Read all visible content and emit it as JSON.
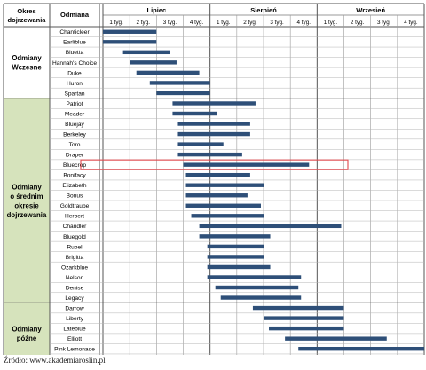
{
  "chart_data": {
    "type": "gantt",
    "headers": {
      "period": "Okres dojrzewania",
      "variety": "Odmiana"
    },
    "months": [
      "Lipiec",
      "Sierpień",
      "Wrzesień"
    ],
    "weeks": [
      "1 tyg.",
      "2 tyg.",
      "3 tyg.",
      "4 tyg.",
      "1 tyg.",
      "2 tyg.",
      "3 tyg.",
      "4 tyg.",
      "1 tyg.",
      "2 tyg.",
      "3 tyg.",
      "4 tyg."
    ],
    "groups": [
      {
        "label": "Odmiany Wczesne",
        "label_lines": [
          "Odmiany",
          "Wczesne"
        ],
        "shaded": false,
        "rows": 7
      },
      {
        "label": "Odmiany o średnim okresie dojrzewania",
        "label_lines": [
          "Odmiany",
          "o średnim",
          "okresie",
          "dojrzewania"
        ],
        "shaded": true,
        "rows": 20
      },
      {
        "label": "Odmiany późne",
        "label_lines": [
          "Odmiany",
          "późne"
        ],
        "shaded": true,
        "rows": 6
      }
    ],
    "x_unit": "weeks from start of July",
    "rows": [
      {
        "name": "Chanticleer",
        "start": 0.0,
        "end": 2.0
      },
      {
        "name": "Earliblue",
        "start": 0.0,
        "end": 2.0
      },
      {
        "name": "Bluetta",
        "start": 0.75,
        "end": 2.5
      },
      {
        "name": "Hannah's Choice",
        "start": 1.0,
        "end": 2.75
      },
      {
        "name": "Duke",
        "start": 1.25,
        "end": 3.6
      },
      {
        "name": "Huron",
        "start": 1.75,
        "end": 4.0
      },
      {
        "name": "Spartan",
        "start": 2.0,
        "end": 4.0
      },
      {
        "name": "Patriot",
        "start": 2.6,
        "end": 5.7
      },
      {
        "name": "Meader",
        "start": 2.6,
        "end": 4.25
      },
      {
        "name": "Bluejay",
        "start": 2.8,
        "end": 5.5
      },
      {
        "name": "Berkeley",
        "start": 2.8,
        "end": 5.5
      },
      {
        "name": "Toro",
        "start": 2.8,
        "end": 4.5
      },
      {
        "name": "Draper",
        "start": 2.8,
        "end": 5.2
      },
      {
        "name": "Bluecrop",
        "start": 3.0,
        "end": 7.7,
        "highlighted": true
      },
      {
        "name": "Bonifacy",
        "start": 3.1,
        "end": 5.5
      },
      {
        "name": "Elizabeth",
        "start": 3.1,
        "end": 6.0
      },
      {
        "name": "Bonus",
        "start": 3.1,
        "end": 5.4
      },
      {
        "name": "Goldtraube",
        "start": 3.1,
        "end": 5.9
      },
      {
        "name": "Herbert",
        "start": 3.3,
        "end": 6.0
      },
      {
        "name": "Chandler",
        "start": 3.6,
        "end": 8.9
      },
      {
        "name": "Bluegold",
        "start": 3.6,
        "end": 6.25
      },
      {
        "name": "Rubel",
        "start": 3.9,
        "end": 6.0
      },
      {
        "name": "Brigitta",
        "start": 3.9,
        "end": 6.0
      },
      {
        "name": "Ozarkblue",
        "start": 3.9,
        "end": 6.25
      },
      {
        "name": "Nelson",
        "start": 3.9,
        "end": 7.4
      },
      {
        "name": "Denise",
        "start": 4.2,
        "end": 7.3
      },
      {
        "name": "Legacy",
        "start": 4.4,
        "end": 7.4
      },
      {
        "name": "Darrow",
        "start": 5.6,
        "end": 9.0
      },
      {
        "name": "Liberty",
        "start": 6.0,
        "end": 9.0
      },
      {
        "name": "Lateblue",
        "start": 6.2,
        "end": 9.0
      },
      {
        "name": "Elliott",
        "start": 6.8,
        "end": 10.6
      },
      {
        "name": "Pink Lemonade",
        "start": 7.3,
        "end": 12.0
      },
      {
        "name": "Aurora",
        "start": 7.6,
        "end": 12.0
      }
    ],
    "bar_color": "#2e4f78",
    "highlight_color": "#e0474c",
    "group_fill": "#d6e3bc",
    "grid": true
  },
  "source": "Źródło: www.akademiaroslin.pl"
}
